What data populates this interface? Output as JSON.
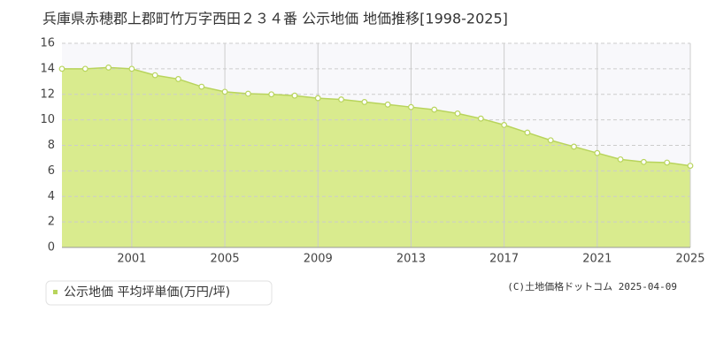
{
  "chart_data": {
    "type": "area",
    "title": "兵庫県赤穂郡上郡町竹万字西田２３４番 公示地価 地価推移[1998-2025]",
    "x": [
      1998,
      1999,
      2000,
      2001,
      2002,
      2003,
      2004,
      2005,
      2006,
      2007,
      2008,
      2009,
      2010,
      2011,
      2012,
      2013,
      2014,
      2015,
      2016,
      2017,
      2018,
      2019,
      2020,
      2021,
      2022,
      2023,
      2024,
      2025
    ],
    "series": [
      {
        "name": "公示地価 平均坪単価(万円/坪)",
        "color": "#d9eb8e",
        "values": [
          14.0,
          14.0,
          14.1,
          14.0,
          13.5,
          13.2,
          12.6,
          12.2,
          12.05,
          12.0,
          11.9,
          11.7,
          11.6,
          11.4,
          11.2,
          11.0,
          10.8,
          10.5,
          10.1,
          9.6,
          9.0,
          8.4,
          7.9,
          7.4,
          6.9,
          6.7,
          6.65,
          6.4
        ]
      }
    ],
    "xlim": [
      1998,
      2025
    ],
    "xticks": [
      2001,
      2005,
      2009,
      2013,
      2017,
      2021,
      2025
    ],
    "ylim": [
      0,
      16
    ],
    "yticks": [
      0,
      2,
      4,
      6,
      8,
      10,
      12,
      14,
      16
    ],
    "grid": true,
    "copyright": "(C)土地価格ドットコム 2025-04-09"
  }
}
